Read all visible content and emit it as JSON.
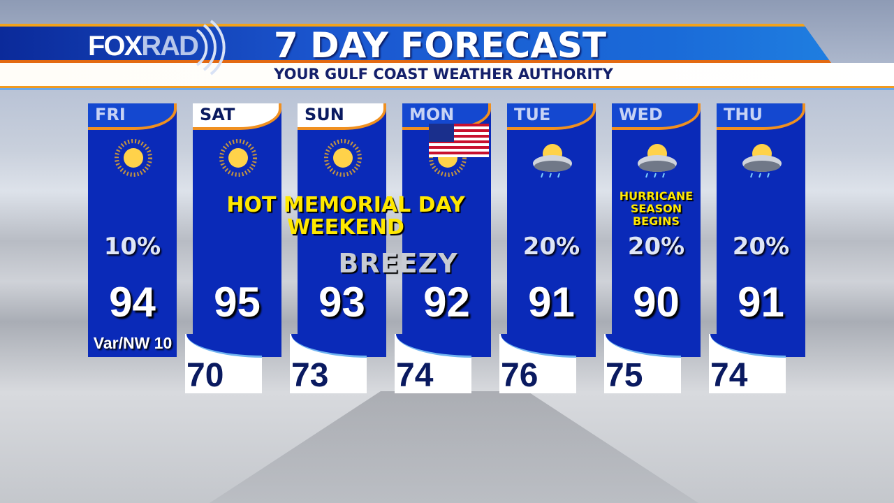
{
  "header": {
    "logo_left": "FOX",
    "logo_right": "RAD",
    "title": "7 DAY FORECAST",
    "tagline": "YOUR GULF COAST WEATHER AUTHORITY"
  },
  "colors": {
    "column": "#0a2ab8",
    "accent": "#f09020",
    "note": "#ffe800",
    "low_text": "#0a1a60"
  },
  "days": [
    {
      "name": "FRI",
      "icon": "sunny-icon",
      "precip": "10%",
      "high": "94",
      "low": "",
      "wind": "Var/NW 10",
      "header_style": "blue"
    },
    {
      "name": "SAT",
      "icon": "sunny-icon",
      "precip": "",
      "high": "95",
      "low": "70",
      "header_style": "white"
    },
    {
      "name": "SUN",
      "icon": "sunny-icon",
      "precip": "",
      "high": "93",
      "low": "73",
      "header_style": "white"
    },
    {
      "name": "MON",
      "icon": "sunny-icon",
      "precip": "",
      "high": "92",
      "low": "74",
      "header_style": "blue"
    },
    {
      "name": "TUE",
      "icon": "partly-cloudy-showers-icon",
      "precip": "20%",
      "high": "91",
      "low": "76",
      "header_style": "blue"
    },
    {
      "name": "WED",
      "icon": "partly-cloudy-showers-icon",
      "precip": "20%",
      "high": "90",
      "low": "75",
      "header_style": "blue"
    },
    {
      "name": "THU",
      "icon": "partly-cloudy-showers-icon",
      "precip": "20%",
      "high": "91",
      "low": "74",
      "header_style": "blue"
    }
  ],
  "notes": {
    "weekend_line1": "HOT MEMORIAL DAY",
    "weekend_line2": "WEEKEND",
    "breezy": "BREEZY",
    "hurricane_line1": "HURRICANE",
    "hurricane_line2": "SEASON",
    "hurricane_line3": "BEGINS"
  }
}
